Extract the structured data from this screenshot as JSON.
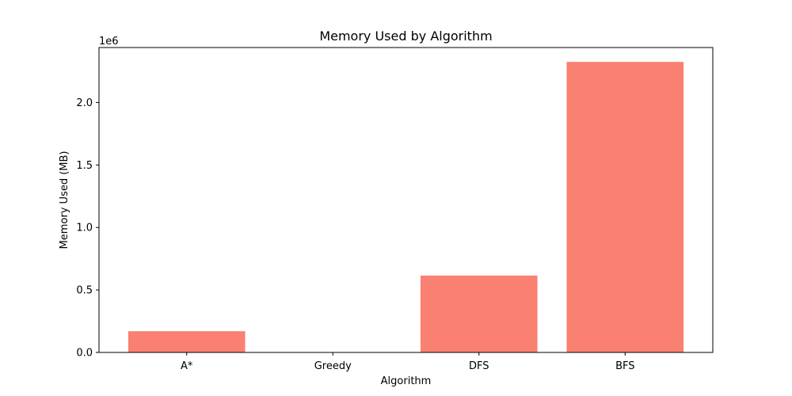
{
  "chart_data": {
    "type": "bar",
    "title": "Memory Used by Algorithm",
    "xlabel": "Algorithm",
    "ylabel": "Memory Used (MB)",
    "offset_label": "1e6",
    "categories": [
      "A*",
      "Greedy",
      "DFS",
      "BFS"
    ],
    "values": [
      170000,
      3000,
      615000,
      2325000
    ],
    "ylim": [
      0,
      2440000
    ],
    "yticks": [
      0,
      500000,
      1000000,
      1500000,
      2000000
    ],
    "ytick_labels": [
      "0.0",
      "0.5",
      "1.0",
      "1.5",
      "2.0"
    ],
    "bar_color": "#fa8072",
    "grid": false,
    "legend": "none"
  }
}
